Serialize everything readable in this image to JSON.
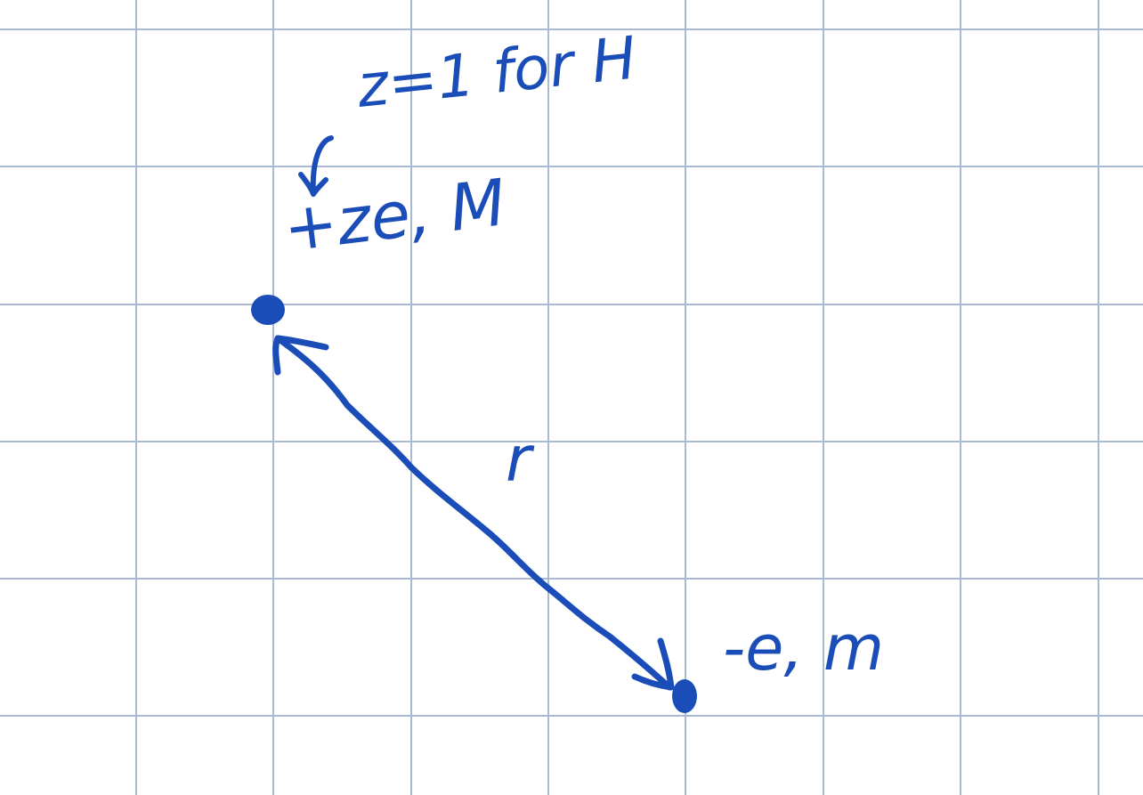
{
  "canvas": {
    "background_color": "#ffffff",
    "grid_color": "#a9b9d1",
    "ink_color": "#1a4db8"
  },
  "annotations": {
    "nucleus_note": "z=1 for H",
    "nucleus_label": "+ze, M",
    "separation_label": "r",
    "electron_label": "-e, m"
  },
  "elements": {
    "nucleus": "positively charged particle (nucleus)",
    "electron": "negatively charged particle (electron)",
    "separation_arrow": "double-headed arrow"
  }
}
